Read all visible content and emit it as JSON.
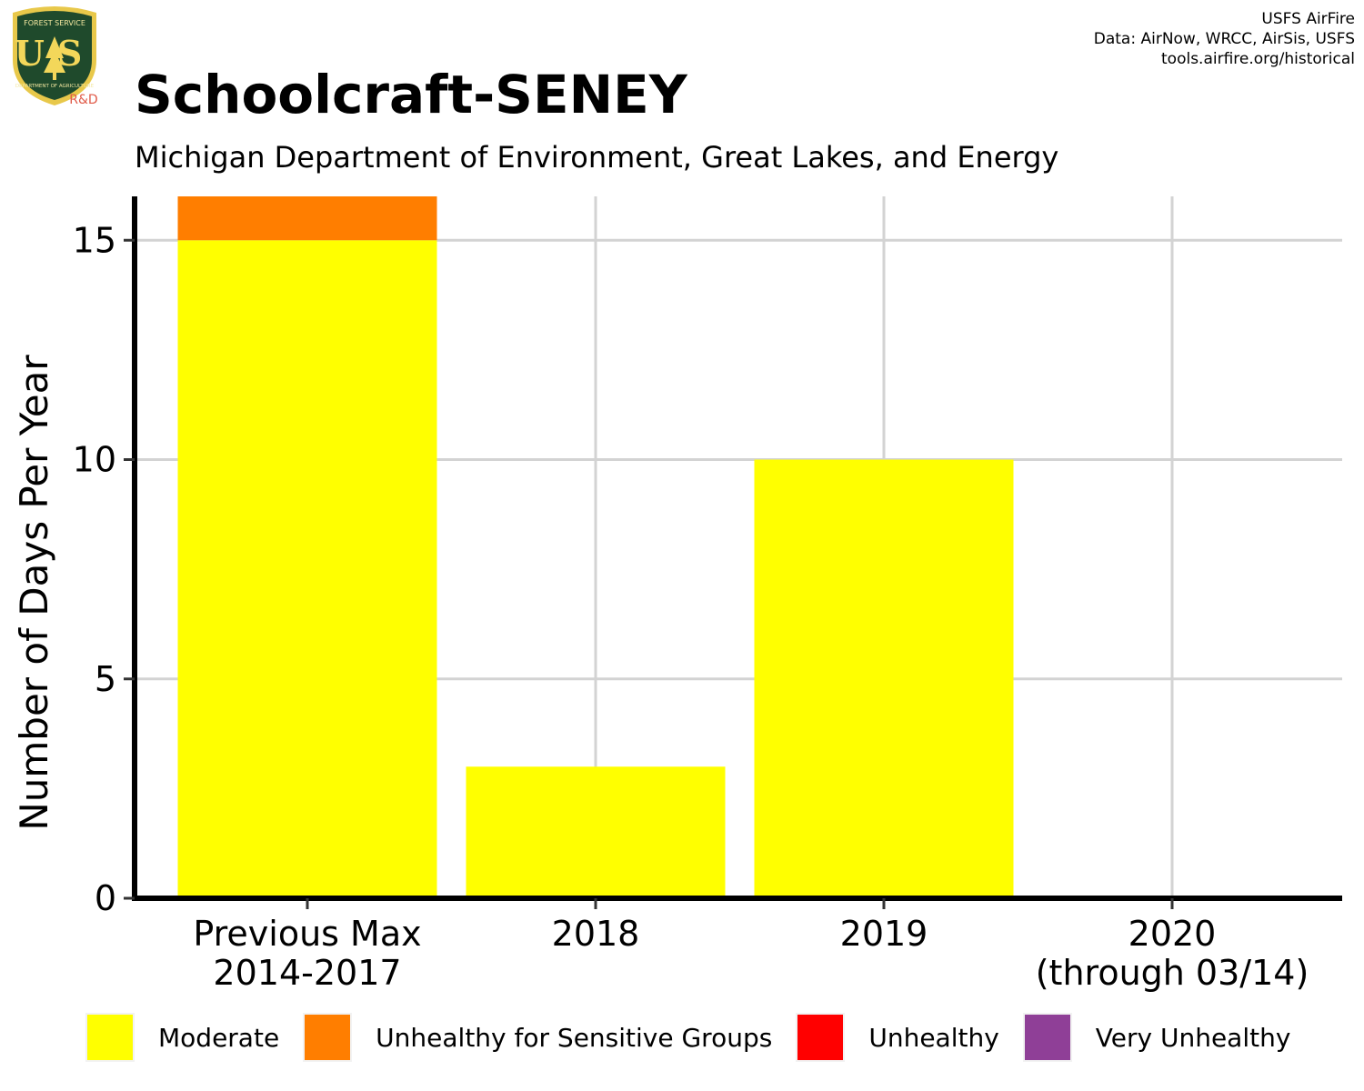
{
  "header": {
    "title": "Schoolcraft-SENEY",
    "subtitle": "Michigan Department of Environment, Great Lakes, and Energy",
    "credits": [
      "USFS AirFire",
      "Data: AirNow, WRCC, AirSis, USFS",
      "tools.airfire.org/historical"
    ]
  },
  "logo": {
    "icon": "usfs-shield-icon",
    "text": "US",
    "rd_label": "R&D",
    "top_text": "FOREST SERVICE",
    "bottom_text": "DEPARTMENT OF AGRICULTURE"
  },
  "chart_data": {
    "type": "bar",
    "stacked": true,
    "ylabel": "Number of Days Per Year",
    "ylim": [
      0,
      16
    ],
    "yticks": [
      0,
      5,
      10,
      15
    ],
    "grid": true,
    "categories": [
      [
        "Previous Max",
        "2014-2017"
      ],
      [
        "2018"
      ],
      [
        "2019"
      ],
      [
        "2020",
        "(through 03/14)"
      ]
    ],
    "series": [
      {
        "name": "Moderate",
        "color": "#ffff00",
        "values": [
          15,
          3,
          10,
          0
        ]
      },
      {
        "name": "Unhealthy for Sensitive Groups",
        "color": "#ff7e00",
        "values": [
          1,
          0,
          0,
          0
        ]
      },
      {
        "name": "Unhealthy",
        "color": "#ff0000",
        "values": [
          0,
          0,
          0,
          0
        ]
      },
      {
        "name": "Very Unhealthy",
        "color": "#8f3f97",
        "values": [
          0,
          0,
          0,
          0
        ]
      }
    ],
    "legend_position": "bottom"
  }
}
